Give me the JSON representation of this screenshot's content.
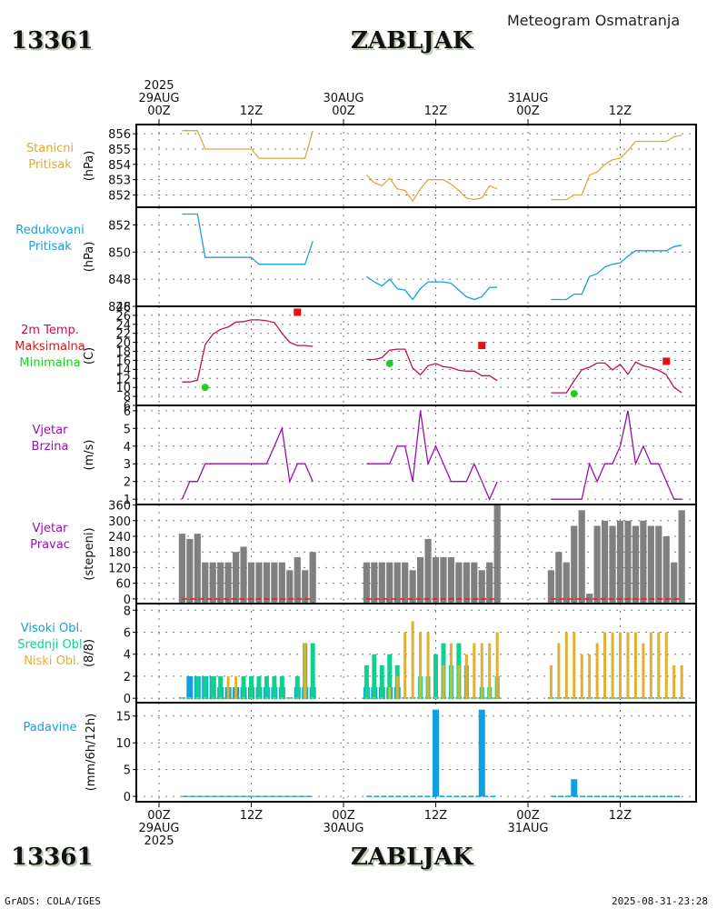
{
  "header": {
    "station_id": "13361",
    "station_name": "ZABLJAK",
    "subtitle": "Meteogram Osmatranja"
  },
  "footer": {
    "station_id": "13361",
    "station_name": "ZABLJAK",
    "credit": "GrADS: COLA/IGES",
    "timestamp": "2025-08-31-23:28"
  },
  "time_axis": {
    "top_labels": [
      {
        "lines": [
          "2025",
          "29AUG",
          "00Z"
        ],
        "hour": 0
      },
      {
        "lines": [
          "12Z"
        ],
        "hour": 12
      },
      {
        "lines": [
          "30AUG",
          "00Z"
        ],
        "hour": 24
      },
      {
        "lines": [
          "12Z"
        ],
        "hour": 36
      },
      {
        "lines": [
          "31AUG",
          "00Z"
        ],
        "hour": 48
      },
      {
        "lines": [
          "12Z"
        ],
        "hour": 60
      }
    ],
    "bottom_labels": [
      {
        "lines": [
          "00Z",
          "29AUG",
          "2025"
        ],
        "hour": 0
      },
      {
        "lines": [
          "12Z"
        ],
        "hour": 12
      },
      {
        "lines": [
          "00Z",
          "30AUG"
        ],
        "hour": 24
      },
      {
        "lines": [
          "12Z"
        ],
        "hour": 36
      },
      {
        "lines": [
          "00Z",
          "31AUG"
        ],
        "hour": 48
      },
      {
        "lines": [
          "12Z"
        ],
        "hour": 60
      }
    ],
    "range_hours": [
      -3,
      70
    ]
  },
  "colors": {
    "station_pressure": "#e0a93a",
    "reduced_pressure": "#1aa0d8",
    "temperature": "#c0105a",
    "tmax": "#e81010",
    "tmin": "#22cc22",
    "wind_speed": "#9910b0",
    "wind_dir_bar": "#808080",
    "wind_dir_zero": "#e02020",
    "cloud_high": "#10a0e0",
    "cloud_medium": "#10d090",
    "cloud_low": "#e0b030",
    "precip": "#10a0e0"
  },
  "chart_data": [
    {
      "id": "station_pressure",
      "type": "line",
      "label_lines": [
        "Stanicni",
        "Pritisak"
      ],
      "label_color": "#e0a93a",
      "ylabel": "(hPa)",
      "yticks": [
        852,
        853,
        854,
        855,
        856
      ],
      "ylim": [
        851.2,
        856.6
      ],
      "series": [
        {
          "name": "Stanicni Pritisak",
          "segments": [
            {
              "start_hour": 3,
              "values": [
                856.2,
                856.2,
                856.2,
                855.0,
                855.0,
                855.0,
                855.0,
                855.0,
                855.0,
                855.0,
                854.4,
                854.4,
                854.4,
                854.4,
                854.4,
                854.4,
                854.4,
                856.2
              ]
            },
            {
              "start_hour": 27,
              "values": [
                853.3,
                852.8,
                852.6,
                853.1,
                852.4,
                852.3,
                851.6,
                852.4,
                853.0,
                853.0,
                853.0,
                852.7,
                852.3,
                851.8,
                851.7,
                851.8,
                852.6,
                852.4
              ]
            },
            {
              "start_hour": 51,
              "values": [
                851.7,
                851.7,
                851.7,
                852.0,
                852.0,
                853.3,
                853.5,
                854.0,
                854.3,
                854.4,
                854.9,
                855.5,
                855.5,
                855.5,
                855.5,
                855.5,
                855.8,
                855.9
              ]
            }
          ]
        }
      ]
    },
    {
      "id": "reduced_pressure",
      "type": "line",
      "label_lines": [
        "Redukovani",
        "Pritisak"
      ],
      "label_color": "#1aa0d8",
      "ylabel": "(hPa)",
      "yticks": [
        846,
        848,
        850,
        852
      ],
      "ylim": [
        846.0,
        853.3
      ],
      "series": [
        {
          "name": "Redukovani Pritisak",
          "segments": [
            {
              "start_hour": 3,
              "values": [
                852.8,
                852.8,
                852.8,
                849.6,
                849.6,
                849.6,
                849.6,
                849.6,
                849.6,
                849.6,
                849.1,
                849.1,
                849.1,
                849.1,
                849.1,
                849.1,
                849.1,
                850.8
              ]
            },
            {
              "start_hour": 27,
              "values": [
                848.2,
                847.8,
                847.5,
                848.0,
                847.3,
                847.2,
                846.5,
                847.3,
                847.8,
                847.8,
                847.8,
                847.7,
                847.2,
                846.7,
                846.5,
                846.7,
                847.4,
                847.4
              ]
            },
            {
              "start_hour": 51,
              "values": [
                846.5,
                846.5,
                846.5,
                846.9,
                846.9,
                848.2,
                848.4,
                848.9,
                849.1,
                849.2,
                849.7,
                850.1,
                850.1,
                850.1,
                850.1,
                850.1,
                850.4,
                850.5
              ]
            }
          ]
        }
      ]
    },
    {
      "id": "temperature",
      "type": "line",
      "label_lines": [
        "2m Temp.",
        "Maksimalna",
        "Minimalna"
      ],
      "label_line_colors": [
        "#c0105a",
        "#e81010",
        "#22cc22"
      ],
      "ylabel": "(C)",
      "yticks": [
        6,
        8,
        10,
        12,
        14,
        16,
        18,
        20,
        22,
        24,
        26,
        28
      ],
      "ylim": [
        6.0,
        28.0
      ],
      "series": [
        {
          "name": "2m Temp.",
          "segments": [
            {
              "start_hour": 3,
              "values": [
                11.2,
                11.2,
                11.6,
                19.5,
                21.8,
                22.9,
                23.4,
                24.5,
                24.6,
                25.0,
                25.0,
                24.8,
                24.4,
                22.0,
                20.0,
                19.3,
                19.3,
                19.1
              ]
            },
            {
              "start_hour": 27,
              "values": [
                16.2,
                16.2,
                16.6,
                18.3,
                18.5,
                18.5,
                14.3,
                12.8,
                14.8,
                15.3,
                14.6,
                14.4,
                13.8,
                13.6,
                13.6,
                12.6,
                12.6,
                11.5
              ]
            },
            {
              "start_hour": 51,
              "values": [
                8.8,
                8.8,
                8.8,
                11.5,
                13.9,
                14.5,
                15.4,
                15.4,
                13.9,
                15.1,
                12.9,
                15.6,
                14.8,
                14.4,
                13.8,
                12.8,
                10.0,
                8.8
              ]
            }
          ]
        }
      ],
      "tmax": [
        {
          "hour": 18,
          "value": 26.7
        },
        {
          "hour": 42,
          "value": 19.3
        },
        {
          "hour": 66,
          "value": 15.8
        }
      ],
      "tmin": [
        {
          "hour": 6,
          "value": 10.0
        },
        {
          "hour": 30,
          "value": 15.3
        },
        {
          "hour": 54,
          "value": 8.6
        }
      ]
    },
    {
      "id": "wind_speed",
      "type": "line",
      "label_lines": [
        "Vjetar",
        "Brzina"
      ],
      "label_color": "#9910b0",
      "ylabel": "(m/s)",
      "yticks": [
        1,
        2,
        3,
        4,
        5,
        6
      ],
      "ylim": [
        0.7,
        6.3
      ],
      "series": [
        {
          "name": "Vjetar Brzina",
          "segments": [
            {
              "start_hour": 3,
              "values": [
                1,
                2,
                2,
                3,
                3,
                3,
                3,
                3,
                3,
                3,
                3,
                3,
                4,
                5,
                2,
                3,
                3,
                2
              ]
            },
            {
              "start_hour": 27,
              "values": [
                3,
                3,
                3,
                3,
                4,
                4,
                2,
                6,
                3,
                4,
                3,
                2,
                2,
                2,
                3,
                2,
                1,
                2
              ]
            },
            {
              "start_hour": 51,
              "values": [
                1,
                1,
                1,
                1,
                1,
                3,
                2,
                3,
                3,
                4,
                6,
                3,
                4,
                3,
                3,
                2,
                1,
                1
              ]
            }
          ]
        }
      ]
    },
    {
      "id": "wind_direction",
      "type": "bar",
      "label_lines": [
        "Vjetar",
        "Pravac"
      ],
      "label_color": "#9910b0",
      "ylabel": "(stepeni)",
      "yticks": [
        0,
        60,
        120,
        180,
        240,
        300,
        360
      ],
      "ylim": [
        -18,
        362
      ],
      "series": [
        {
          "name": "Vjetar Pravac",
          "segments": [
            {
              "start_hour": 3,
              "values": [
                250,
                230,
                250,
                140,
                140,
                140,
                140,
                180,
                200,
                140,
                140,
                140,
                140,
                140,
                110,
                160,
                110,
                180
              ]
            },
            {
              "start_hour": 27,
              "values": [
                140,
                140,
                140,
                140,
                140,
                140,
                110,
                160,
                230,
                160,
                160,
                160,
                140,
                140,
                140,
                110,
                140,
                360
              ]
            },
            {
              "start_hour": 51,
              "values": [
                110,
                180,
                140,
                280,
                340,
                20,
                280,
                300,
                280,
                300,
                300,
                280,
                300,
                280,
                280,
                240,
                140,
                340
              ]
            }
          ]
        }
      ]
    },
    {
      "id": "clouds",
      "type": "bar",
      "label_lines": [
        "Visoki Obl.",
        "Srednji Obl.",
        "Niski Obl."
      ],
      "label_line_colors": [
        "#10a0e0",
        "#10d090",
        "#e0b030"
      ],
      "ylabel": "(8/8)",
      "yticks": [
        0,
        2,
        4,
        6,
        8
      ],
      "ylim": [
        -0.4,
        8.6
      ],
      "series": [
        {
          "name": "Visoki Obl.",
          "segments": [
            {
              "start_hour": 3,
              "values": [
                0,
                2,
                2,
                2,
                2,
                1,
                1,
                1,
                1,
                1,
                1,
                1,
                1,
                1,
                0,
                1,
                1,
                1
              ]
            },
            {
              "start_hour": 27,
              "values": [
                1,
                1,
                1,
                1,
                1,
                0,
                0,
                0,
                0,
                0,
                0,
                0,
                0,
                0,
                0,
                0,
                0,
                0
              ]
            },
            {
              "start_hour": 51,
              "values": [
                0,
                0,
                0,
                0,
                0,
                0,
                0,
                0,
                0,
                0,
                0,
                0,
                0,
                0,
                0,
                0,
                0,
                0
              ]
            }
          ]
        },
        {
          "name": "Srednji Obl.",
          "segments": [
            {
              "start_hour": 3,
              "values": [
                0,
                0,
                2,
                2,
                2,
                2,
                0,
                0,
                2,
                2,
                2,
                2,
                2,
                2,
                0,
                2,
                5,
                5
              ]
            },
            {
              "start_hour": 27,
              "values": [
                3,
                4,
                3,
                4,
                3,
                0,
                0,
                2,
                2,
                4,
                5,
                3,
                5,
                3,
                0,
                1,
                1,
                2
              ]
            },
            {
              "start_hour": 51,
              "values": [
                0,
                0,
                0,
                0,
                0,
                0,
                0,
                0,
                0,
                0,
                0,
                0,
                0,
                0,
                0,
                0,
                0,
                0
              ]
            }
          ]
        },
        {
          "name": "Niski Obl.",
          "segments": [
            {
              "start_hour": 3,
              "values": [
                0,
                0,
                0,
                0,
                0,
                0,
                2,
                2,
                0,
                0,
                0,
                0,
                0,
                0,
                0,
                0,
                5,
                0
              ]
            },
            {
              "start_hour": 27,
              "values": [
                0,
                0,
                0,
                1,
                2,
                6,
                7,
                6,
                6,
                0,
                3,
                5,
                3,
                4,
                5,
                5,
                5,
                6
              ]
            },
            {
              "start_hour": 51,
              "values": [
                3,
                5,
                6,
                6,
                4,
                4,
                5,
                6,
                6,
                6,
                6,
                6,
                5,
                6,
                6,
                6,
                3,
                3
              ]
            }
          ]
        }
      ]
    },
    {
      "id": "precipitation",
      "type": "bar",
      "label_lines": [
        "Padavine"
      ],
      "label_color": "#1aa0d8",
      "ylabel": "(mm/6h/12h)",
      "yticks": [
        0,
        5,
        10,
        15
      ],
      "ylim": [
        -1.0,
        17.5
      ],
      "zero_segments": [
        [
          3,
          20
        ],
        [
          27,
          44
        ],
        [
          51,
          68
        ]
      ],
      "bars": [
        {
          "hour": 36,
          "value": 16.2
        },
        {
          "hour": 42,
          "value": 16.2
        },
        {
          "hour": 54,
          "value": 3.2
        }
      ]
    }
  ]
}
